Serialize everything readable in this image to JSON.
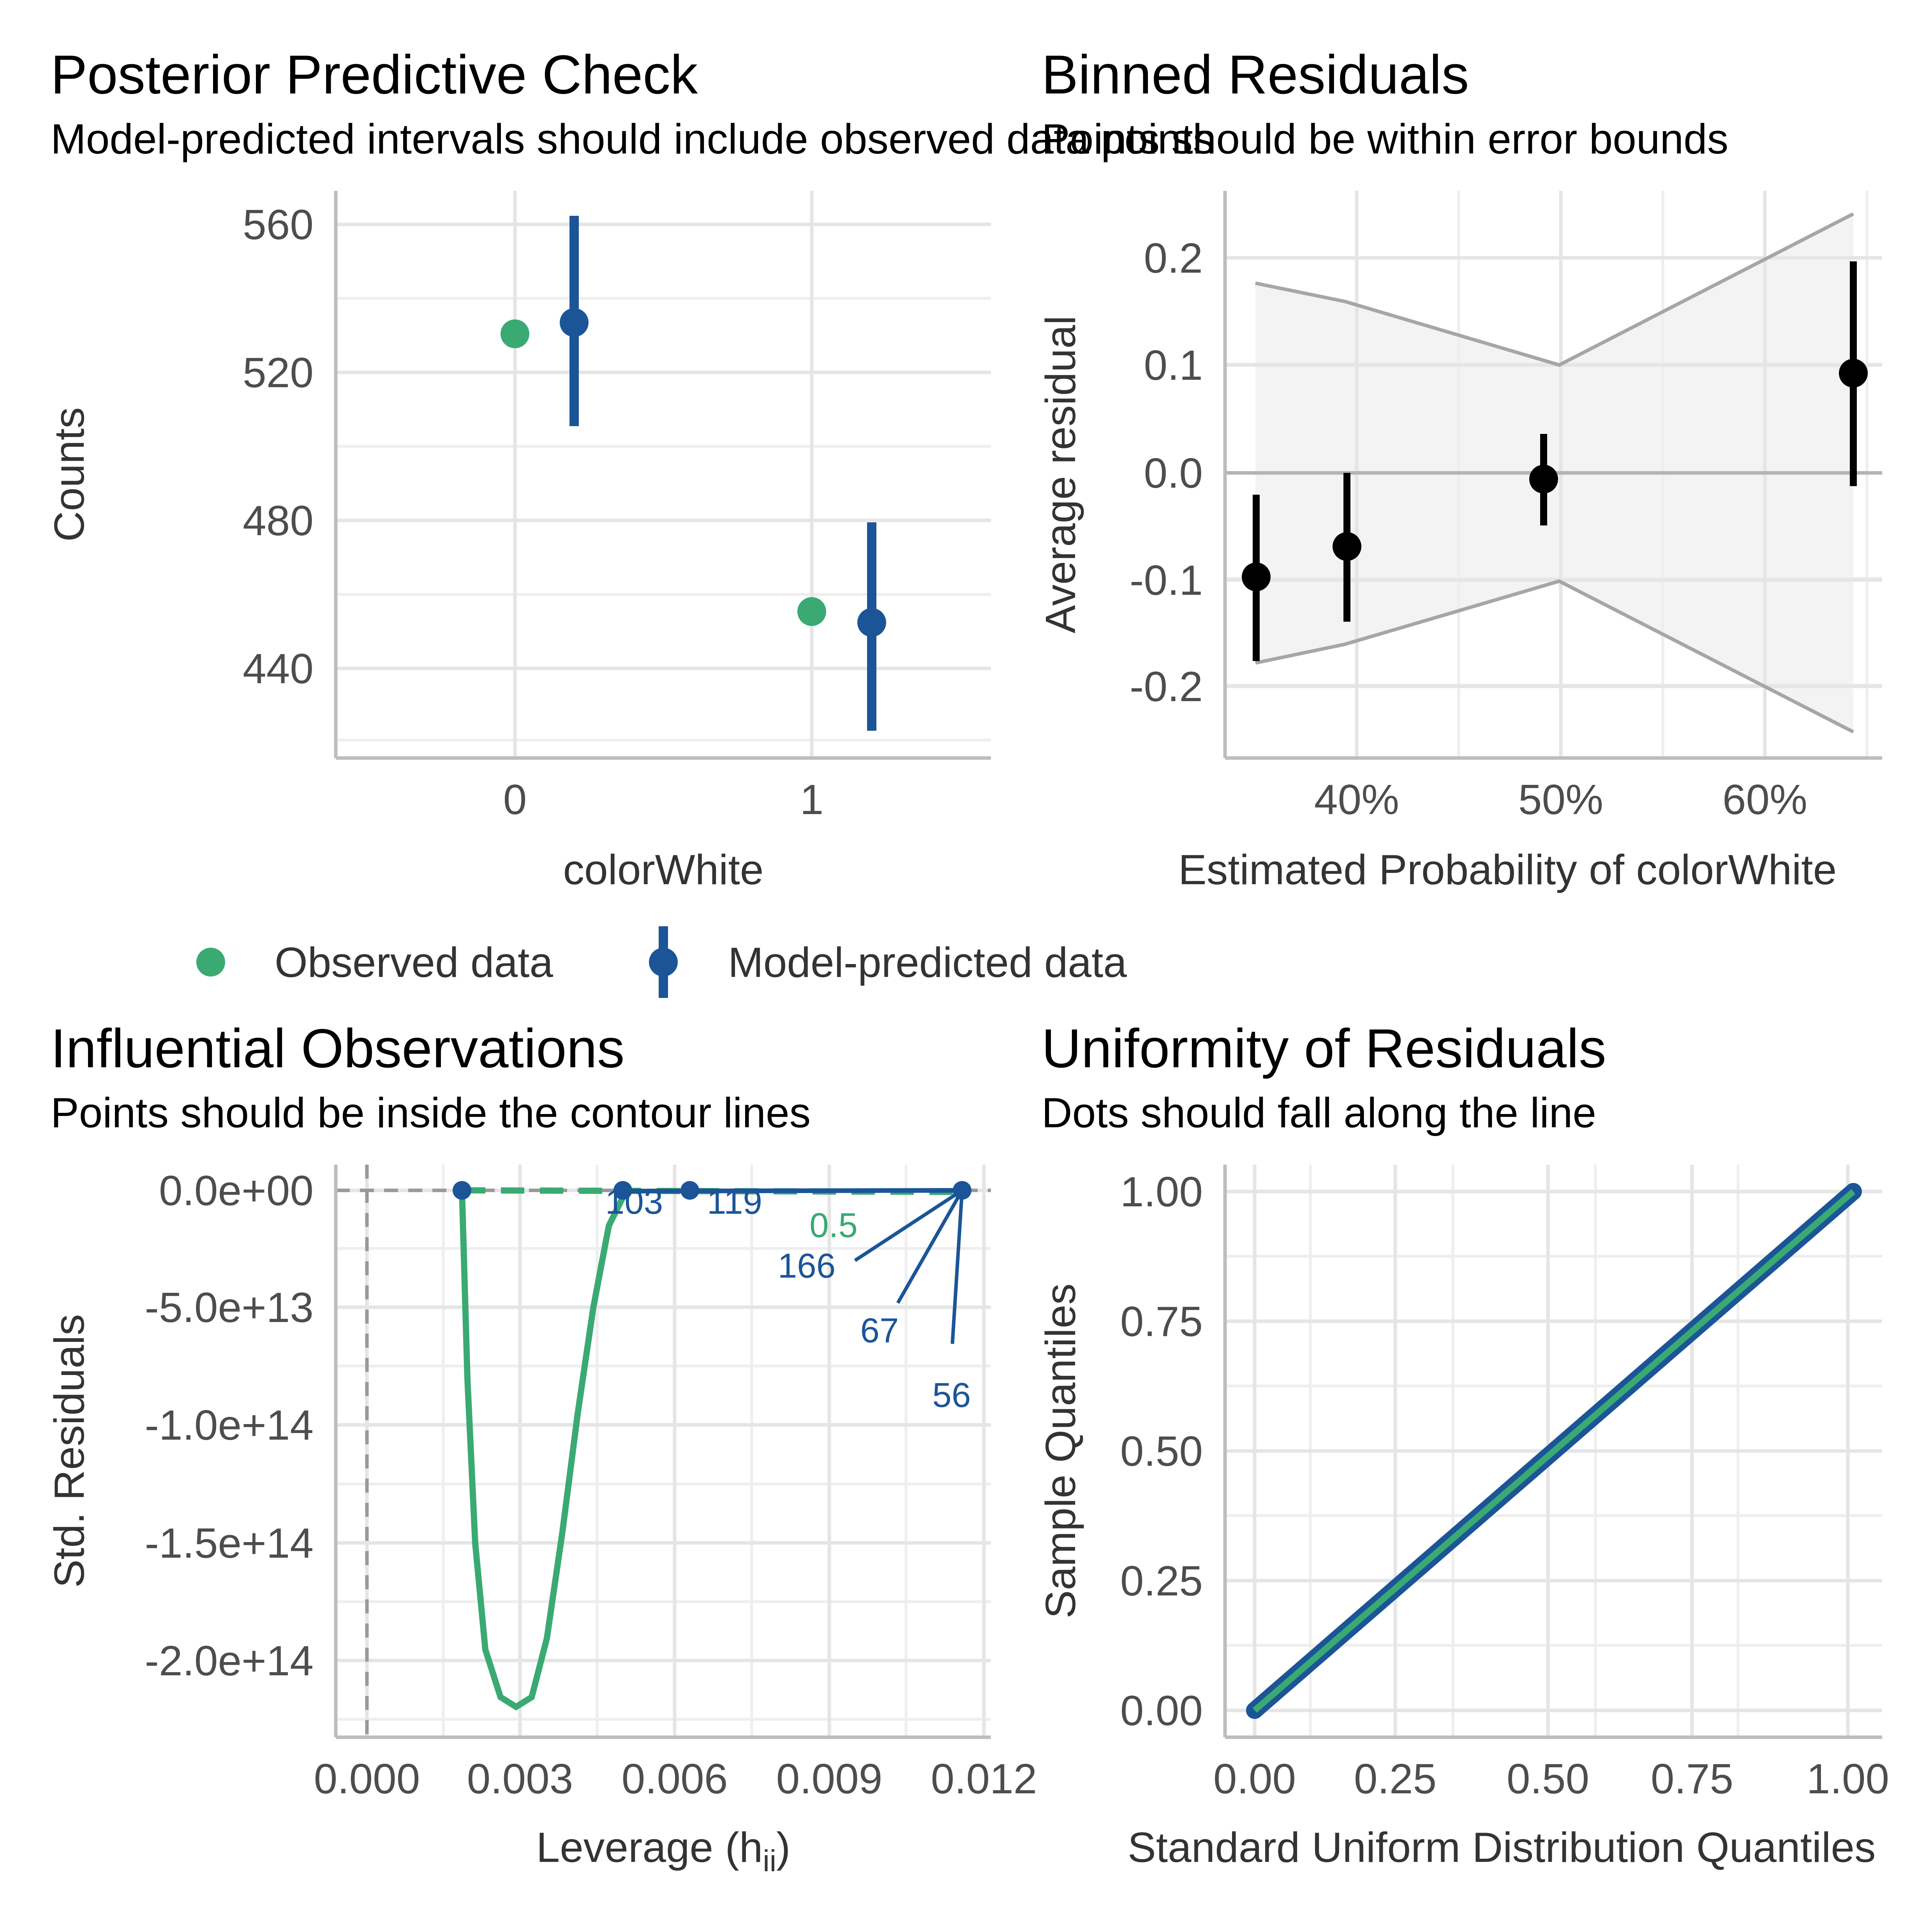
{
  "colors": {
    "observed": "#3aaa72",
    "predicted": "#1b5597",
    "binned_point": "#000000",
    "bounds_line": "#a6a6a6",
    "bounds_fill": "#f3f3f3",
    "reference": "#999999",
    "contour": "#3aaa72",
    "label_blue": "#1b5597"
  },
  "legend": {
    "observed_label": "Observed data",
    "predicted_label": "Model-predicted data"
  },
  "chart_data": [
    {
      "panel": "ppc",
      "type": "scatter",
      "title": "Posterior Predictive Check",
      "subtitle": "Model-predicted intervals should include observed data points",
      "xlabel": "colorWhite",
      "ylabel": "Counts",
      "x_ticks": [
        "0",
        "1"
      ],
      "y_ticks": [
        "440",
        "480",
        "520",
        "560"
      ],
      "xlim": [
        -0.55,
        1.55
      ],
      "ylim": [
        416,
        569
      ],
      "grid": true,
      "series": [
        {
          "name": "Observed data",
          "points": [
            {
              "x": 0,
              "y": 530
            },
            {
              "x": 1,
              "y": 455
            }
          ]
        },
        {
          "name": "Model-predicted data",
          "points": [
            {
              "x": 0.2,
              "y": 533,
              "ymin": 506,
              "ymax": 563
            },
            {
              "x": 1.2,
              "y": 452,
              "ymin": 423,
              "ymax": 480
            }
          ]
        }
      ]
    },
    {
      "panel": "binned",
      "type": "scatter",
      "title": "Binned Residuals",
      "subtitle": "Points should be within error bounds",
      "xlabel": "Estimated Probability of colorWhite",
      "ylabel": "Average residual",
      "x_ticks": [
        "40%",
        "50%",
        "60%"
      ],
      "y_ticks": [
        "-0.2",
        "-0.1",
        "0.0",
        "0.1",
        "0.2"
      ],
      "xlim": [
        0.335,
        0.657
      ],
      "ylim": [
        -0.265,
        0.265
      ],
      "grid": true,
      "points": [
        {
          "x": 0.348,
          "y": -0.096,
          "ymin": -0.173,
          "ymax": -0.022
        },
        {
          "x": 0.392,
          "y": -0.069,
          "ymin": -0.137,
          "ymax": 0.0
        },
        {
          "x": 0.489,
          "y": -0.005,
          "ymin": -0.049,
          "ymax": 0.037
        },
        {
          "x": 0.646,
          "y": 0.093,
          "ymin": -0.012,
          "ymax": 0.196
        }
      ],
      "bounds_x": [
        0.348,
        0.392,
        0.489,
        0.646
      ],
      "upper_bound": [
        0.176,
        0.16,
        0.1,
        0.24
      ],
      "lower_bound": [
        -0.176,
        -0.16,
        -0.1,
        -0.24
      ]
    },
    {
      "panel": "influence",
      "type": "scatter",
      "title": "Influential Observations",
      "subtitle": "Points should be inside the contour lines",
      "xlabel_main": "Leverage (h",
      "xlabel_sub": "ii",
      "xlabel_end": ")",
      "ylabel": "Std. Residuals",
      "x_ticks": [
        "0.000",
        "0.003",
        "0.006",
        "0.009",
        "0.012"
      ],
      "y_ticks": [
        "0.0e+00",
        "-5.0e+13",
        "-1.0e+14",
        "-1.5e+14",
        "-2.0e+14"
      ],
      "xlim": [
        -0.0011,
        0.012
      ],
      "ylim": [
        -230000000000000.0,
        14000000000000.0
      ],
      "grid": true,
      "points": [
        {
          "x": 0.00185,
          "y": 0
        },
        {
          "x": 0.005,
          "y": 0
        },
        {
          "x": 0.0063,
          "y": 0
        },
        {
          "x": 0.0115,
          "y": 0
        }
      ],
      "labels": [
        {
          "text": "103",
          "x": 0.005,
          "y": -3500000000000.0
        },
        {
          "text": "119",
          "x": 0.0063,
          "y": -3500000000000.0
        },
        {
          "text": "166",
          "x": 0.0115,
          "y": -31000000000000.0
        },
        {
          "text": "67",
          "x": 0.0115,
          "y": -59000000000000.0
        },
        {
          "text": "56",
          "x": 0.0115,
          "y": -87000000000000.0
        }
      ],
      "contour_label": "0.5",
      "contour": [
        [
          0.00185,
          0
        ],
        [
          0.00195,
          -80000000000000.0
        ],
        [
          0.0021,
          -150000000000000.0
        ],
        [
          0.0023,
          -195000000000000.0
        ],
        [
          0.0026,
          -215000000000000.0
        ],
        [
          0.0029,
          -222000000000000.0
        ],
        [
          0.0032,
          -215000000000000.0
        ],
        [
          0.0035,
          -190000000000000.0
        ],
        [
          0.0038,
          -145000000000000.0
        ],
        [
          0.0041,
          -95000000000000.0
        ],
        [
          0.0044,
          -50000000000000.0
        ],
        [
          0.0047,
          -15000000000000.0
        ],
        [
          0.005,
          -2000000000000.0
        ],
        [
          0.006,
          -500000000000.0
        ],
        [
          0.008,
          -200000000000.0
        ],
        [
          0.0115,
          0
        ]
      ]
    },
    {
      "panel": "qq",
      "type": "line",
      "title": "Uniformity of Residuals",
      "subtitle": "Dots should fall along the line",
      "xlabel": "Standard Uniform Distribution Quantiles",
      "ylabel": "Sample Quantiles",
      "x_ticks": [
        "0.00",
        "0.25",
        "0.50",
        "0.75",
        "1.00"
      ],
      "y_ticks": [
        "0.00",
        "0.25",
        "0.50",
        "0.75",
        "1.00"
      ],
      "xlim": [
        -0.05,
        1.05
      ],
      "ylim": [
        -0.05,
        1.05
      ],
      "grid": true,
      "reference_line": [
        [
          0,
          0
        ],
        [
          1,
          1
        ]
      ]
    }
  ]
}
